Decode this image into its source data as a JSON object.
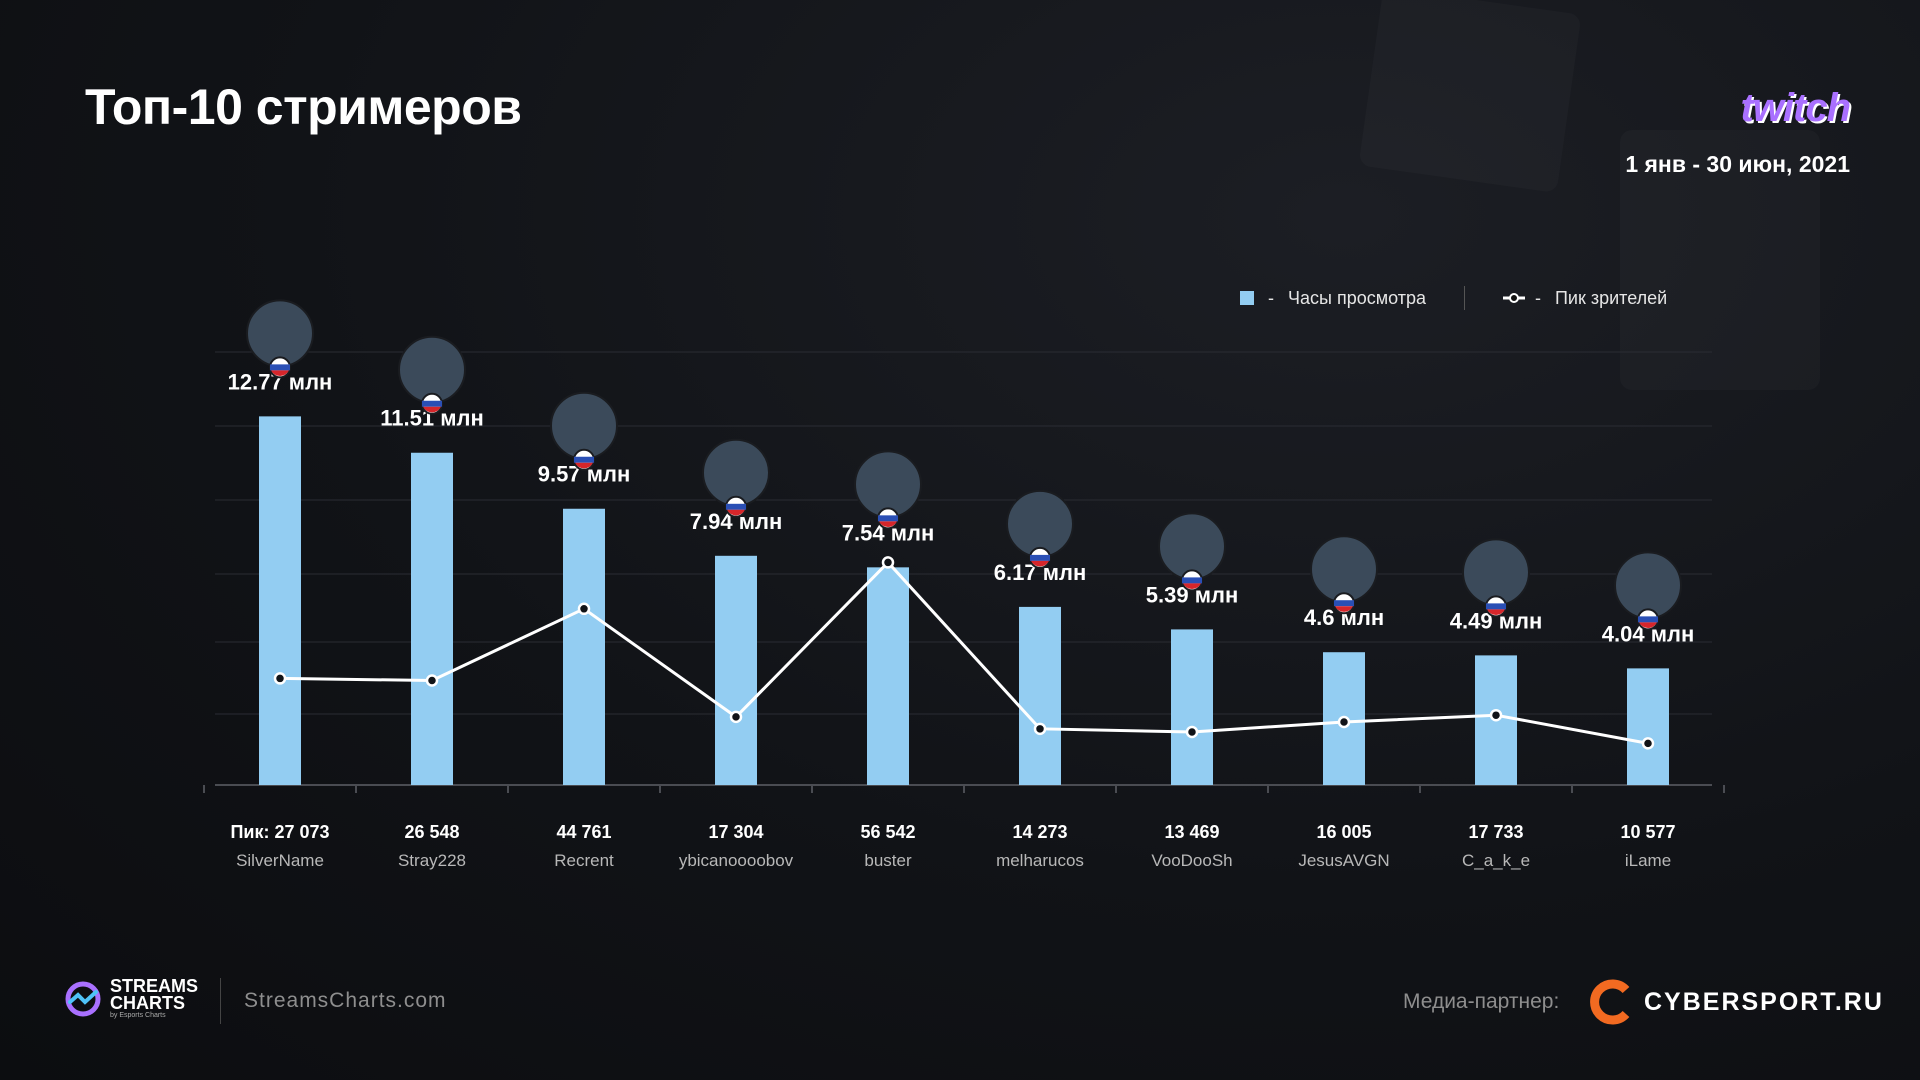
{
  "header": {
    "title": "Топ-10 стримеров",
    "brand": "twitch",
    "date_range": "1 янв - 30 июн, 2021"
  },
  "legend": {
    "bars_label": "Часы просмотра",
    "line_label": "Пик зрителей",
    "separator": "-"
  },
  "footer": {
    "logo_line1": "STREAMS",
    "logo_line2": "CHARTS",
    "logo_sub": "by Esports Charts",
    "site": "StreamsCharts.com",
    "partner_label": "Медиа-партнер:",
    "partner_name": "CYBERSPORT.RU"
  },
  "colors": {
    "bar": "#93cdf2",
    "line": "#ffffff",
    "brand": "#a970ff",
    "partner": "#f26a21",
    "grid": "#2a2c33"
  },
  "chart_data": {
    "type": "bar",
    "categories": [
      "SilverName",
      "Stray228",
      "Recrent",
      "ybicanoooobov",
      "buster",
      "melharucos",
      "VooDooSh",
      "JesusAVGN",
      "C_a_k_e",
      "iLame"
    ],
    "series": [
      {
        "name": "Часы просмотра",
        "type": "bar",
        "values": [
          12.77,
          11.51,
          9.57,
          7.94,
          7.54,
          6.17,
          5.39,
          4.6,
          4.49,
          4.04
        ],
        "labels": [
          "12.77 млн",
          "11.51 млн",
          "9.57 млн",
          "7.94 млн",
          "7.54 млн",
          "6.17 млн",
          "5.39 млн",
          "4.6 млн",
          "4.49 млн",
          "4.04 млн"
        ]
      },
      {
        "name": "Пик зрителей",
        "type": "line",
        "values": [
          27073,
          26548,
          44761,
          17304,
          56542,
          14273,
          13469,
          16005,
          17733,
          10577
        ],
        "labels": [
          "Пик: 27 073",
          "26 548",
          "44 761",
          "17 304",
          "56 542",
          "14 273",
          "13 469",
          "16 005",
          "17 733",
          "10 577"
        ]
      }
    ],
    "ylim_bars": [
      0,
      15
    ],
    "ylim_line": [
      0,
      110000
    ],
    "grid": true
  }
}
